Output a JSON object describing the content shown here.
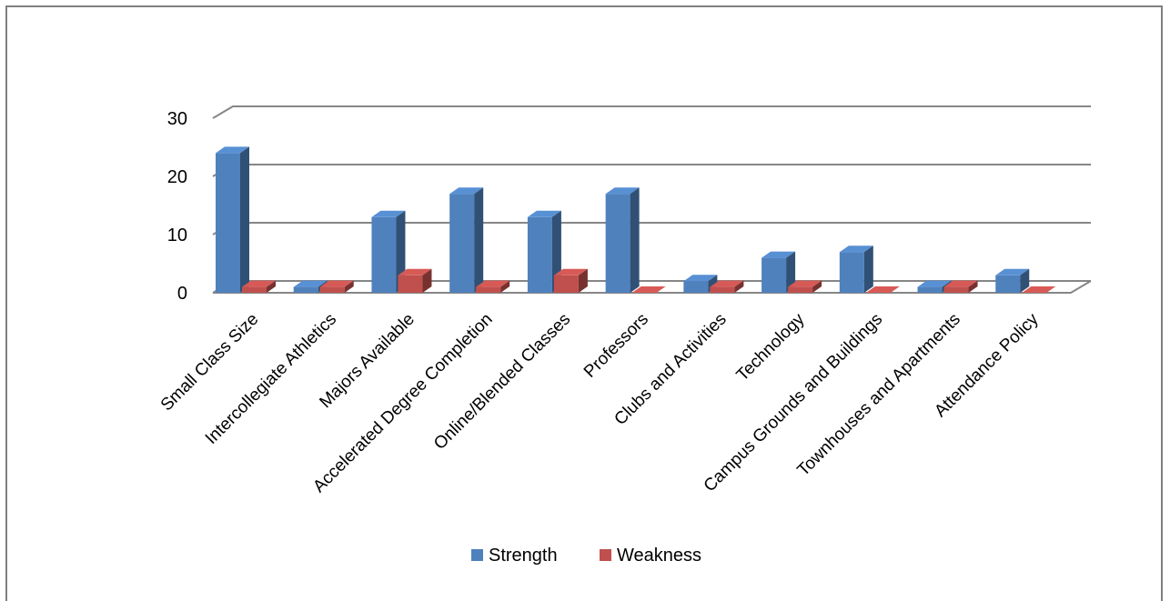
{
  "chart_data": {
    "type": "bar",
    "title": "",
    "xlabel": "",
    "ylabel": "",
    "ylim": [
      0,
      30
    ],
    "yticks": [
      "0",
      "10",
      "20",
      "30"
    ],
    "grid": true,
    "legend_position": "bottom",
    "categories": [
      "Small Class Size",
      "Intercollegiate Athletics",
      "Majors Available",
      "Accelerated Degree Completion",
      "Online/Blended Classes",
      "Professors",
      "Clubs and Activities",
      "Technology",
      "Campus Grounds and Buildings",
      "Townhouses and Apartments",
      "Attendance Policy"
    ],
    "series": [
      {
        "name": "Strength",
        "color": "#4f81bd",
        "values": [
          24,
          1,
          13,
          17,
          13,
          17,
          2,
          6,
          7,
          1,
          3
        ]
      },
      {
        "name": "Weakness",
        "color": "#c0504d",
        "values": [
          1,
          1,
          3,
          1,
          3,
          0,
          1,
          1,
          0,
          1,
          0
        ]
      }
    ]
  }
}
